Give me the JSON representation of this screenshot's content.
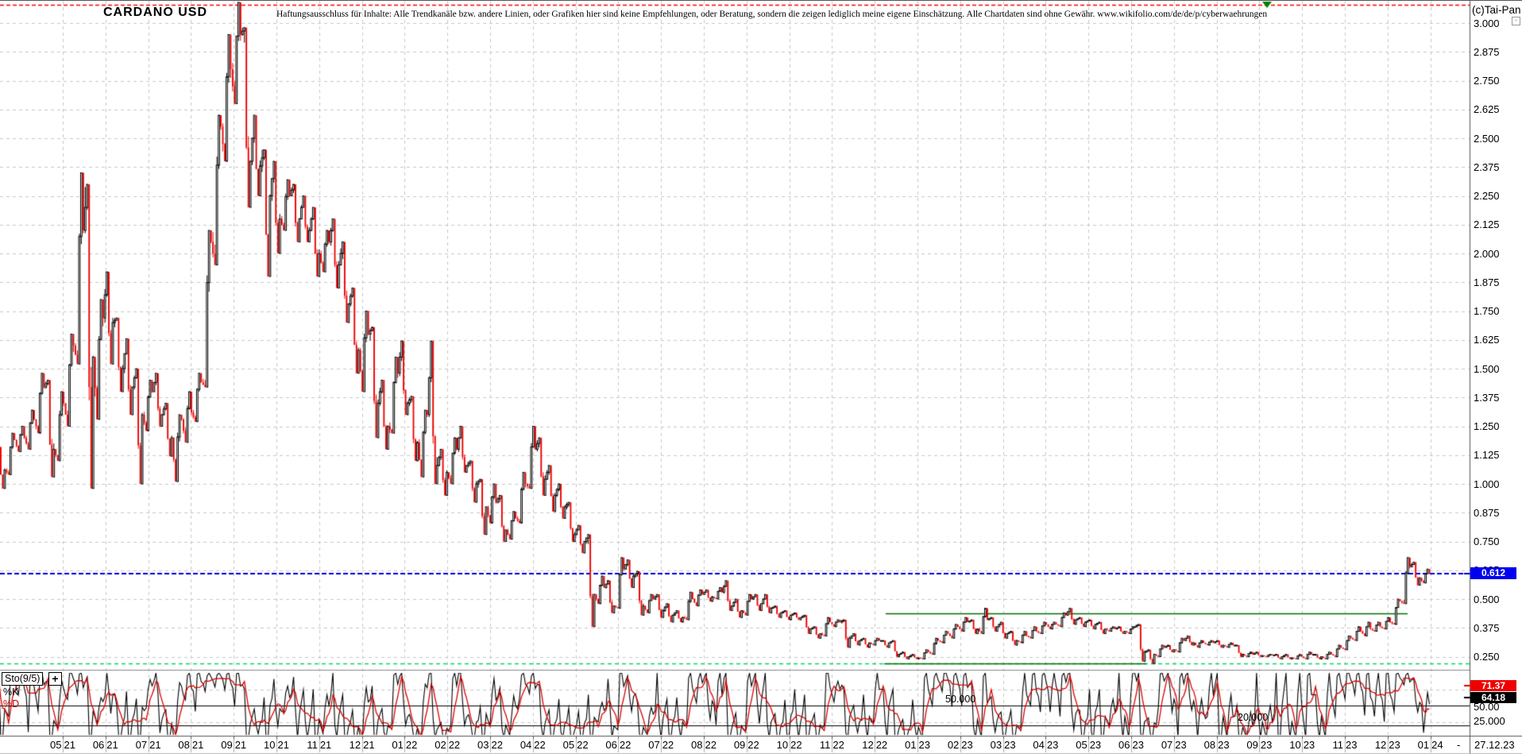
{
  "header": {
    "title": "CARDANO USD",
    "disclaimer": "Haftungsausschluss für Inhalte: Alle Trendkanäle bzw. andere Linien, oder Grafiken hier sind keine Empfehlungen, oder Beratung, sondern die zeigen lediglich meine eigene Einschätzung. Alle Chartdaten sind ohne Gewähr.  www.wikifolio.com/de/de/p/cyberwaehrungen",
    "copyright": "(c)Tai-Pan",
    "collapse_icon": "-"
  },
  "price_axis": {
    "labels": [
      "3.000",
      "2.875",
      "2.750",
      "2.625",
      "2.500",
      "2.375",
      "2.250",
      "2.125",
      "2.000",
      "1.875",
      "1.750",
      "1.625",
      "1.500",
      "1.375",
      "1.250",
      "1.125",
      "1.000",
      "0.875",
      "0.750",
      "0.625",
      "0.500",
      "0.375",
      "0.250"
    ],
    "max": 3.0,
    "min": 0.25,
    "step": 0.125,
    "current_badge": "0.612"
  },
  "x_axis": {
    "months": [
      [
        "05",
        "21"
      ],
      [
        "06",
        "21"
      ],
      [
        "07",
        "21"
      ],
      [
        "08",
        "21"
      ],
      [
        "09",
        "21"
      ],
      [
        "10",
        "21"
      ],
      [
        "11",
        "21"
      ],
      [
        "12",
        "21"
      ],
      [
        "01",
        "22"
      ],
      [
        "02",
        "22"
      ],
      [
        "03",
        "22"
      ],
      [
        "04",
        "22"
      ],
      [
        "05",
        "22"
      ],
      [
        "06",
        "22"
      ],
      [
        "07",
        "22"
      ],
      [
        "08",
        "22"
      ],
      [
        "09",
        "22"
      ],
      [
        "10",
        "22"
      ],
      [
        "11",
        "22"
      ],
      [
        "12",
        "22"
      ],
      [
        "01",
        "23"
      ],
      [
        "02",
        "23"
      ],
      [
        "03",
        "23"
      ],
      [
        "04",
        "23"
      ],
      [
        "05",
        "23"
      ],
      [
        "06",
        "23"
      ],
      [
        "07",
        "23"
      ],
      [
        "08",
        "23"
      ],
      [
        "09",
        "23"
      ],
      [
        "10",
        "23"
      ],
      [
        "11",
        "23"
      ],
      [
        "12",
        "23"
      ],
      [
        "01",
        "24"
      ]
    ],
    "end_dash": "-",
    "last_date": "27.12.23"
  },
  "indicator_panel": {
    "name": "Sto(9/5)",
    "expand_icon": "+",
    "k_label": "%K",
    "d_label": "%D",
    "d_badge": "71.37",
    "k_badge": "64.18",
    "line_label_50": "50.000",
    "line_label_20": "20.000",
    "axis_label_50": "50.00",
    "axis_label_25": "25.000"
  },
  "colors": {
    "up_candle": "#000000",
    "down_candle": "#ee0000",
    "grid": "#c8c8c8",
    "blue_line": "#0000dd",
    "badge_blue": "#0000ee",
    "badge_red": "#ee0000",
    "badge_black": "#000000",
    "red_trendline": "#ff0000",
    "green_solid": "#007000",
    "green_dashed": "#00d968",
    "sto_k": "#000000",
    "sto_d": "#dd0000"
  },
  "chart_data": {
    "type": "candlestick+stochastic",
    "title": "CARDANO USD",
    "timeframe": "daily, ~2021-03 to 2023-12-27",
    "price_axis_range": [
      0.18,
      3.1
    ],
    "last_price": 0.612,
    "last_date": "27.12.23",
    "overlays": {
      "red_dashed_resistance": 3.08,
      "blue_dashed_current_price": 0.612,
      "green_solid_level_1": {
        "price": 0.45,
        "x_span_months": [
          "2022-12",
          "2023-11"
        ]
      },
      "green_solid_level_2": {
        "price": 0.215,
        "x_span_months": [
          "2022-10",
          "2023-08"
        ]
      },
      "green_dashed_support": 0.215
    },
    "indicator": {
      "name": "Sto(9/5)",
      "k_current": 64.18,
      "d_current": 71.37,
      "solid_lines": [
        50.0,
        20.0
      ],
      "dashed_gridlines": [
        75.0,
        25.0
      ],
      "range": [
        0,
        100
      ]
    },
    "weekly_ohlc_start": "2021-03-15",
    "weekly_ohlc": [
      [
        1.1,
        1.16,
        0.98,
        1.06
      ],
      [
        1.06,
        1.22,
        1.04,
        1.19
      ],
      [
        1.19,
        1.25,
        1.14,
        1.2
      ],
      [
        1.2,
        1.32,
        1.15,
        1.28
      ],
      [
        1.28,
        1.48,
        1.22,
        1.42
      ],
      [
        1.42,
        1.45,
        1.03,
        1.15
      ],
      [
        1.15,
        1.4,
        1.1,
        1.35
      ],
      [
        1.35,
        1.65,
        1.25,
        1.6
      ],
      [
        1.6,
        2.35,
        1.52,
        2.1
      ],
      [
        2.1,
        2.3,
        0.98,
        1.55
      ],
      [
        1.55,
        1.8,
        1.28,
        1.72
      ],
      [
        1.72,
        1.92,
        1.52,
        1.7
      ],
      [
        1.7,
        1.72,
        1.4,
        1.5
      ],
      [
        1.5,
        1.63,
        1.3,
        1.42
      ],
      [
        1.42,
        1.5,
        1.0,
        1.3
      ],
      [
        1.3,
        1.45,
        1.23,
        1.4
      ],
      [
        1.4,
        1.48,
        1.25,
        1.3
      ],
      [
        1.3,
        1.35,
        1.12,
        1.2
      ],
      [
        1.2,
        1.3,
        1.01,
        1.28
      ],
      [
        1.28,
        1.4,
        1.18,
        1.31
      ],
      [
        1.31,
        1.48,
        1.27,
        1.44
      ],
      [
        1.44,
        2.1,
        1.42,
        2.05
      ],
      [
        2.05,
        2.6,
        1.95,
        2.55
      ],
      [
        2.55,
        2.95,
        2.4,
        2.8
      ],
      [
        2.8,
        3.09,
        2.65,
        2.95
      ],
      [
        2.95,
        2.98,
        2.2,
        2.4
      ],
      [
        2.4,
        2.6,
        2.25,
        2.38
      ],
      [
        2.38,
        2.45,
        1.9,
        2.25
      ],
      [
        2.25,
        2.4,
        2.0,
        2.15
      ],
      [
        2.15,
        2.32,
        2.1,
        2.25
      ],
      [
        2.25,
        2.3,
        2.05,
        2.15
      ],
      [
        2.15,
        2.25,
        2.05,
        2.1
      ],
      [
        2.1,
        2.2,
        1.9,
        2.0
      ],
      [
        2.0,
        2.1,
        1.92,
        2.05
      ],
      [
        2.05,
        2.15,
        1.85,
        1.95
      ],
      [
        1.95,
        2.05,
        1.7,
        1.78
      ],
      [
        1.78,
        1.85,
        1.48,
        1.58
      ],
      [
        1.58,
        1.75,
        1.4,
        1.65
      ],
      [
        1.65,
        1.68,
        1.2,
        1.35
      ],
      [
        1.35,
        1.45,
        1.15,
        1.25
      ],
      [
        1.25,
        1.55,
        1.22,
        1.48
      ],
      [
        1.48,
        1.62,
        1.3,
        1.35
      ],
      [
        1.35,
        1.38,
        1.1,
        1.18
      ],
      [
        1.18,
        1.32,
        1.03,
        1.3
      ],
      [
        1.3,
        1.62,
        1.0,
        1.08
      ],
      [
        1.08,
        1.15,
        0.95,
        1.05
      ],
      [
        1.05,
        1.2,
        1.0,
        1.15
      ],
      [
        1.15,
        1.25,
        1.05,
        1.08
      ],
      [
        1.08,
        1.1,
        0.92,
        1.0
      ],
      [
        1.0,
        1.02,
        0.78,
        0.9
      ],
      [
        0.9,
        1.0,
        0.83,
        0.92
      ],
      [
        0.92,
        0.95,
        0.75,
        0.8
      ],
      [
        0.8,
        0.88,
        0.76,
        0.85
      ],
      [
        0.85,
        1.05,
        0.83,
        1.0
      ],
      [
        1.0,
        1.25,
        0.98,
        1.15
      ],
      [
        1.15,
        1.2,
        0.95,
        1.02
      ],
      [
        1.02,
        1.08,
        0.88,
        0.95
      ],
      [
        0.95,
        1.0,
        0.85,
        0.9
      ],
      [
        0.9,
        0.92,
        0.75,
        0.78
      ],
      [
        0.78,
        0.82,
        0.7,
        0.75
      ],
      [
        0.75,
        0.78,
        0.38,
        0.52
      ],
      [
        0.52,
        0.6,
        0.48,
        0.55
      ],
      [
        0.55,
        0.58,
        0.44,
        0.47
      ],
      [
        0.47,
        0.68,
        0.46,
        0.63
      ],
      [
        0.63,
        0.67,
        0.55,
        0.6
      ],
      [
        0.6,
        0.62,
        0.43,
        0.47
      ],
      [
        0.47,
        0.52,
        0.44,
        0.5
      ],
      [
        0.5,
        0.52,
        0.42,
        0.45
      ],
      [
        0.45,
        0.48,
        0.4,
        0.43
      ],
      [
        0.43,
        0.45,
        0.4,
        0.42
      ],
      [
        0.42,
        0.53,
        0.41,
        0.5
      ],
      [
        0.5,
        0.54,
        0.47,
        0.52
      ],
      [
        0.52,
        0.54,
        0.49,
        0.51
      ],
      [
        0.51,
        0.55,
        0.5,
        0.53
      ],
      [
        0.53,
        0.58,
        0.45,
        0.47
      ],
      [
        0.47,
        0.5,
        0.42,
        0.45
      ],
      [
        0.45,
        0.52,
        0.43,
        0.5
      ],
      [
        0.5,
        0.52,
        0.45,
        0.48
      ],
      [
        0.48,
        0.52,
        0.44,
        0.46
      ],
      [
        0.46,
        0.47,
        0.42,
        0.44
      ],
      [
        0.44,
        0.45,
        0.41,
        0.43
      ],
      [
        0.43,
        0.44,
        0.41,
        0.42
      ],
      [
        0.42,
        0.43,
        0.35,
        0.37
      ],
      [
        0.37,
        0.38,
        0.33,
        0.35
      ],
      [
        0.35,
        0.42,
        0.34,
        0.4
      ],
      [
        0.4,
        0.41,
        0.38,
        0.4
      ],
      [
        0.4,
        0.41,
        0.29,
        0.33
      ],
      [
        0.33,
        0.35,
        0.3,
        0.32
      ],
      [
        0.32,
        0.33,
        0.29,
        0.31
      ],
      [
        0.31,
        0.33,
        0.3,
        0.32
      ],
      [
        0.32,
        0.32,
        0.29,
        0.31
      ],
      [
        0.31,
        0.32,
        0.25,
        0.26
      ],
      [
        0.26,
        0.27,
        0.24,
        0.25
      ],
      [
        0.25,
        0.26,
        0.24,
        0.245
      ],
      [
        0.245,
        0.28,
        0.24,
        0.27
      ],
      [
        0.27,
        0.33,
        0.26,
        0.32
      ],
      [
        0.32,
        0.36,
        0.31,
        0.35
      ],
      [
        0.35,
        0.39,
        0.33,
        0.38
      ],
      [
        0.38,
        0.42,
        0.36,
        0.4
      ],
      [
        0.4,
        0.41,
        0.35,
        0.37
      ],
      [
        0.37,
        0.46,
        0.35,
        0.41
      ],
      [
        0.41,
        0.42,
        0.36,
        0.38
      ],
      [
        0.38,
        0.4,
        0.33,
        0.35
      ],
      [
        0.35,
        0.36,
        0.3,
        0.32
      ],
      [
        0.32,
        0.36,
        0.31,
        0.34
      ],
      [
        0.34,
        0.38,
        0.33,
        0.36
      ],
      [
        0.36,
        0.4,
        0.35,
        0.39
      ],
      [
        0.39,
        0.4,
        0.37,
        0.39
      ],
      [
        0.39,
        0.44,
        0.38,
        0.43
      ],
      [
        0.43,
        0.46,
        0.39,
        0.41
      ],
      [
        0.41,
        0.42,
        0.38,
        0.4
      ],
      [
        0.4,
        0.41,
        0.37,
        0.39
      ],
      [
        0.39,
        0.4,
        0.35,
        0.37
      ],
      [
        0.37,
        0.38,
        0.36,
        0.37
      ],
      [
        0.37,
        0.38,
        0.35,
        0.36
      ],
      [
        0.36,
        0.38,
        0.35,
        0.38
      ],
      [
        0.38,
        0.39,
        0.23,
        0.27
      ],
      [
        0.27,
        0.28,
        0.22,
        0.26
      ],
      [
        0.26,
        0.3,
        0.25,
        0.29
      ],
      [
        0.29,
        0.3,
        0.27,
        0.28
      ],
      [
        0.28,
        0.33,
        0.27,
        0.32
      ],
      [
        0.32,
        0.34,
        0.3,
        0.31
      ],
      [
        0.31,
        0.32,
        0.29,
        0.31
      ],
      [
        0.31,
        0.32,
        0.3,
        0.31
      ],
      [
        0.31,
        0.32,
        0.29,
        0.3
      ],
      [
        0.3,
        0.31,
        0.29,
        0.3
      ],
      [
        0.3,
        0.3,
        0.25,
        0.26
      ],
      [
        0.26,
        0.27,
        0.25,
        0.26
      ],
      [
        0.26,
        0.27,
        0.25,
        0.255
      ],
      [
        0.255,
        0.26,
        0.25,
        0.255
      ],
      [
        0.255,
        0.26,
        0.24,
        0.25
      ],
      [
        0.25,
        0.26,
        0.24,
        0.245
      ],
      [
        0.245,
        0.26,
        0.24,
        0.25
      ],
      [
        0.25,
        0.27,
        0.24,
        0.26
      ],
      [
        0.26,
        0.26,
        0.24,
        0.25
      ],
      [
        0.25,
        0.27,
        0.24,
        0.26
      ],
      [
        0.26,
        0.3,
        0.25,
        0.29
      ],
      [
        0.29,
        0.34,
        0.28,
        0.33
      ],
      [
        0.33,
        0.38,
        0.32,
        0.36
      ],
      [
        0.36,
        0.4,
        0.34,
        0.37
      ],
      [
        0.37,
        0.4,
        0.36,
        0.38
      ],
      [
        0.38,
        0.42,
        0.37,
        0.4
      ],
      [
        0.4,
        0.5,
        0.39,
        0.49
      ],
      [
        0.49,
        0.68,
        0.48,
        0.64
      ],
      [
        0.64,
        0.66,
        0.56,
        0.59
      ],
      [
        0.59,
        0.63,
        0.57,
        0.612
      ]
    ]
  }
}
